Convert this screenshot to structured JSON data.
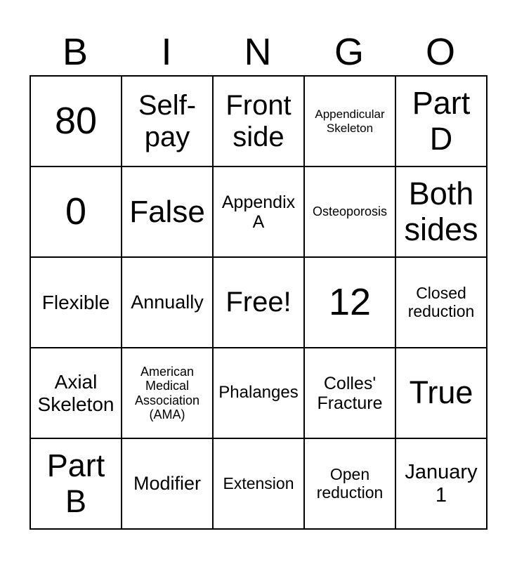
{
  "colors": {
    "background": "#ffffff",
    "text": "#000000",
    "grid_border": "#000000"
  },
  "header": {
    "letters": [
      "B",
      "I",
      "N",
      "G",
      "O"
    ]
  },
  "cells": [
    [
      "80",
      "Self-pay",
      "Front side",
      "Appendicular Skeleton",
      "Part D"
    ],
    [
      "0",
      "False",
      "Appendix A",
      "Osteoporosis",
      "Both sides"
    ],
    [
      "Flexible",
      "Annually",
      "Free!",
      "12",
      "Closed reduction"
    ],
    [
      "Axial Skeleton",
      "American Medical Association (AMA)",
      "Phalanges",
      "Colles' Fracture",
      "True"
    ],
    [
      "Part B",
      "Modifier",
      "Extension",
      "Open reduction",
      "January 1"
    ]
  ]
}
